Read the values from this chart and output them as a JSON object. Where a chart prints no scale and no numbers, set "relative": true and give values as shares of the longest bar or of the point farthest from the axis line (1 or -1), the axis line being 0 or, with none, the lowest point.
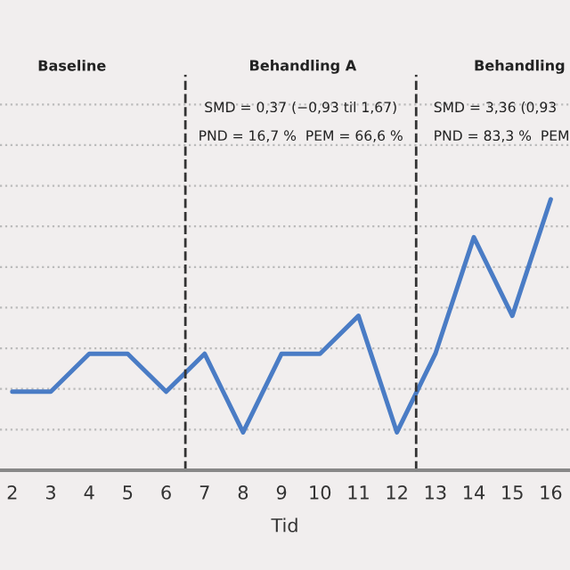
{
  "chart_data": {
    "type": "line",
    "relative": true,
    "xlabel": "Tid",
    "x": [
      2,
      3,
      4,
      5,
      6,
      7,
      8,
      9,
      10,
      11,
      12,
      13,
      14,
      15,
      16
    ],
    "xlim": [
      1.68,
      16.5
    ],
    "xticks": [
      2,
      3,
      4,
      5,
      6,
      7,
      8,
      9,
      10,
      11,
      12,
      13,
      14,
      15,
      16
    ],
    "series": [
      {
        "color": "#4a7cc5",
        "values": [
          0.29,
          0.29,
          0.43,
          0.43,
          0.29,
          0.43,
          0.14,
          0.43,
          0.43,
          0.57,
          0.14,
          0.43,
          0.86,
          0.57,
          1
        ]
      }
    ],
    "ref_lines": [
      {
        "axis": "x",
        "value": 6.5,
        "line_style": "dashed",
        "color": "#333333"
      },
      {
        "axis": "x",
        "value": 12.5,
        "line_style": "dashed",
        "color": "#333333"
      }
    ],
    "annotations": [
      "Baseline",
      "Behandling A",
      "Behandling",
      "SMD = 0,37 (−0,93 til 1,67)",
      "PND = 16,7 %  PEM = 66,6 %",
      "SMD = 3,36 (0,93",
      "PND = 83,3 %  PEM"
    ],
    "grid": "y",
    "legend": false,
    "line_style": "solid",
    "marker": "none"
  }
}
